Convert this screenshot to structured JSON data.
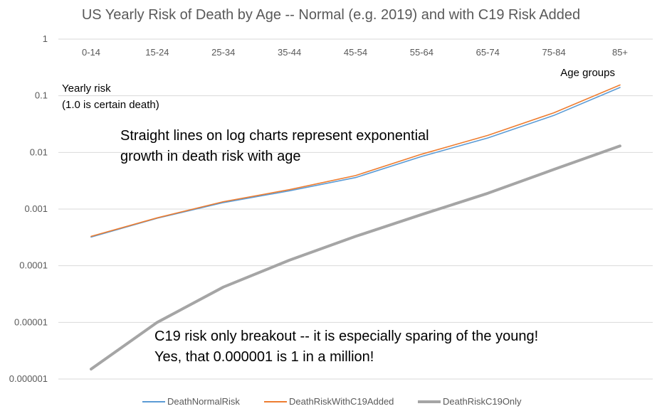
{
  "chart_data": {
    "type": "line",
    "title": "US Yearly Risk of Death by Age -- Normal (e.g. 2019) and with C19 Risk Added",
    "xlabel": "Age groups",
    "ylabel_lines": [
      "Yearly risk",
      "(1.0 is certain death)"
    ],
    "y_scale": "log",
    "ylim": [
      1e-06,
      1
    ],
    "y_ticks": [
      1,
      0.1,
      0.01,
      0.001,
      0.0001,
      1e-05,
      1e-06
    ],
    "y_tick_labels": [
      "1",
      "0.1",
      "0.01",
      "0.001",
      "0.0001",
      "0.00001",
      "0.000001"
    ],
    "grid": true,
    "legend_position": "bottom",
    "categories": [
      "0-14",
      "15-24",
      "25-34",
      "35-44",
      "45-54",
      "55-64",
      "65-74",
      "75-84",
      "85+"
    ],
    "series": [
      {
        "name": "DeathNormalRisk",
        "color": "#5b9bd5",
        "values": [
          0.00032,
          0.00069,
          0.0013,
          0.0021,
          0.0036,
          0.0085,
          0.018,
          0.045,
          0.14
        ]
      },
      {
        "name": "DeathRiskWithC19Added",
        "color": "#ed7d31",
        "values": [
          0.00033,
          0.0007,
          0.00135,
          0.0022,
          0.0039,
          0.0093,
          0.02,
          0.05,
          0.155
        ]
      },
      {
        "name": "DeathRiskC19Only",
        "color": "#a5a5a5",
        "values": [
          1.5e-06,
          1e-05,
          4.2e-05,
          0.000125,
          0.00033,
          0.0008,
          0.0019,
          0.005,
          0.013
        ]
      }
    ],
    "annotations": [
      {
        "lines": [
          "Straight lines on log charts represent exponential",
          "growth in death risk with age"
        ]
      },
      {
        "lines": [
          "C19 risk only breakout -- it is especially sparing of the young!",
          "Yes, that 0.000001 is 1 in a million!"
        ]
      }
    ]
  }
}
